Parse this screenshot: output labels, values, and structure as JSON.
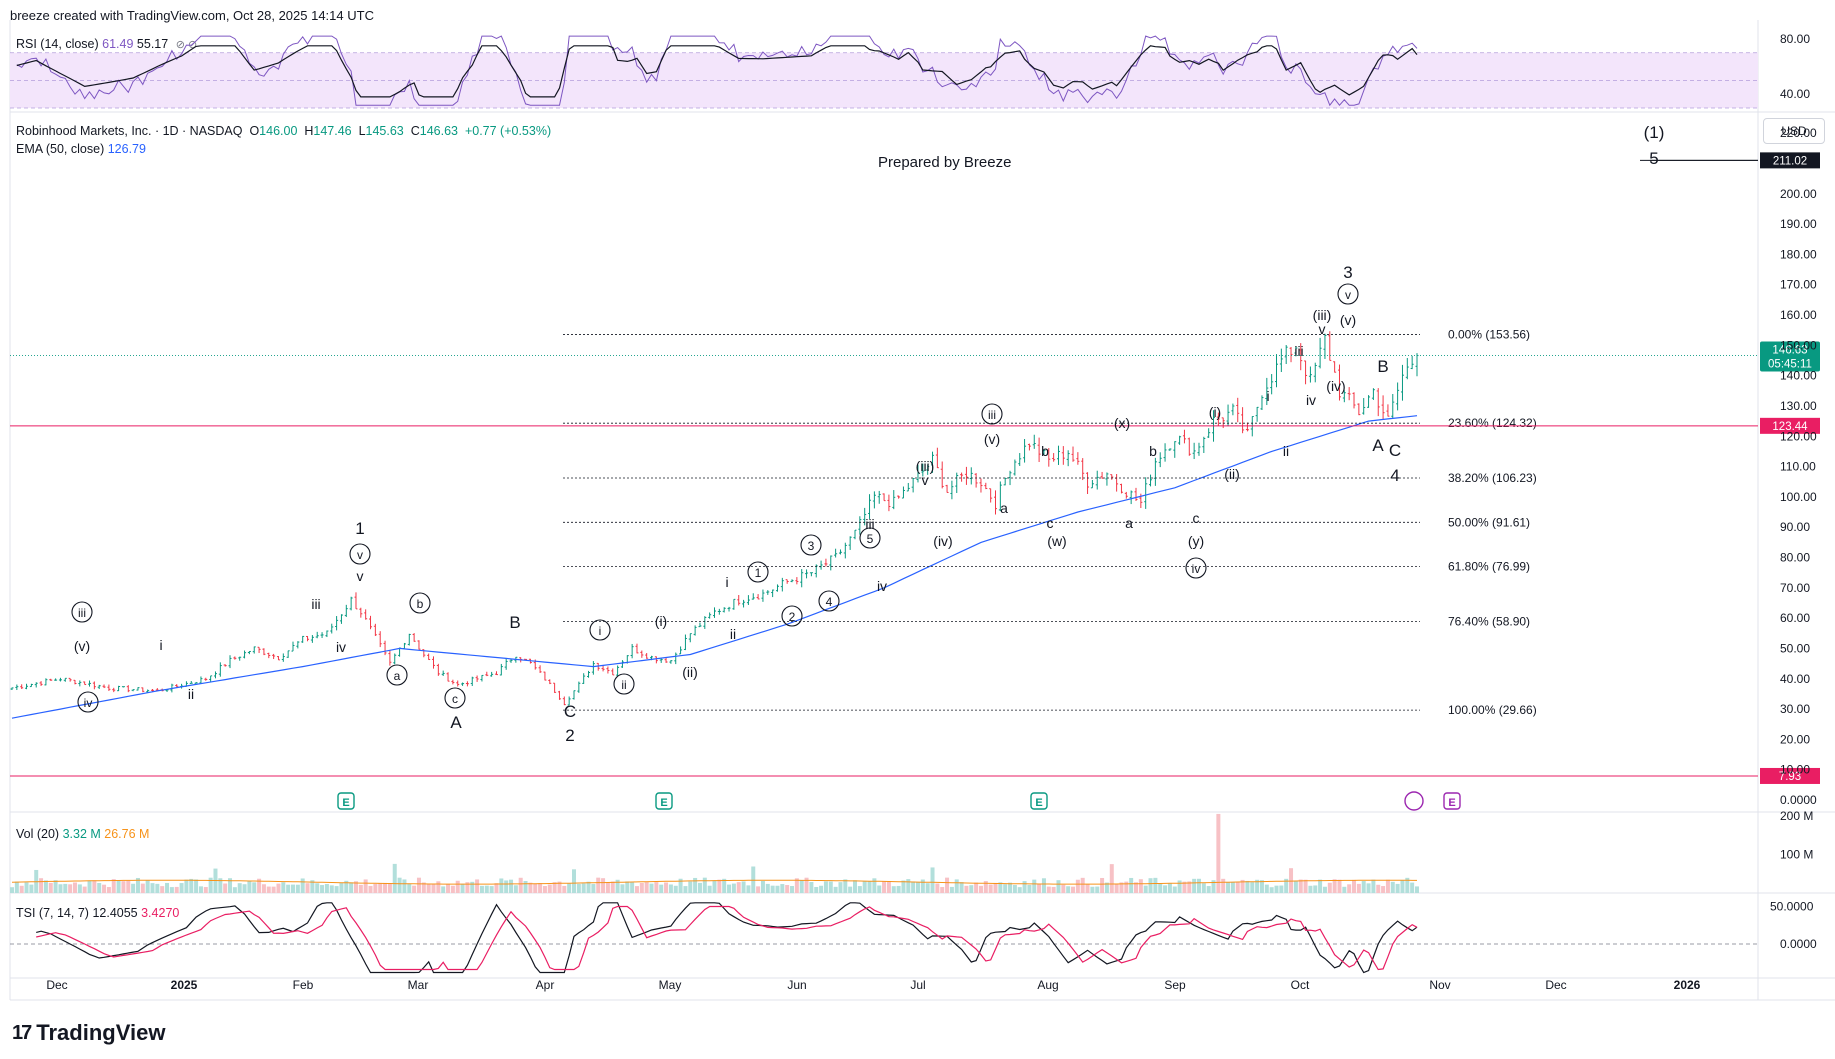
{
  "header": {
    "credit": "breeze created with TradingView.com, Oct 28, 2025 14:14 UTC"
  },
  "rsi_legend": {
    "label": "RSI (14, close)",
    "value1": "61.49",
    "value2": "55.17",
    "icons": "⊘ ⊘"
  },
  "price_legend": {
    "symbol": "Robinhood Markets, Inc. · 1D · NASDAQ",
    "open_label": "O",
    "open": "146.00",
    "high_label": "H",
    "high": "147.46",
    "low_label": "L",
    "low": "145.63",
    "close_label": "C",
    "close": "146.63",
    "change": "+0.77 (+0.53%)"
  },
  "ema_legend": {
    "label": "EMA (50, close)",
    "value": "126.79"
  },
  "vol_legend": {
    "label": "Vol (20)",
    "value1": "3.32 M",
    "value2": "26.76 M"
  },
  "tsi_legend": {
    "label": "TSI (7, 14, 7)",
    "value1": "12.4055",
    "value2": "3.4270"
  },
  "annotation": {
    "prepared": "Prepared by Breeze"
  },
  "currency": "USD",
  "footer": {
    "brand": "TradingView",
    "logo": "17"
  },
  "colors": {
    "up": "#089981",
    "down": "#f23645",
    "ema": "#2962ff",
    "rsi": "#7e57c2",
    "tsi_signal": "#e91e63",
    "hline": "#e91e63",
    "vol_up": "#b2dfdb",
    "vol_down": "#f7c1c5",
    "vol_ma": "#f7931a"
  },
  "chart_data": {
    "type": "candlestick",
    "x_ticks": [
      "Dec",
      "2025",
      "Feb",
      "Mar",
      "Apr",
      "May",
      "Jun",
      "Jul",
      "Aug",
      "Sep",
      "Oct",
      "Nov",
      "Dec",
      "2026"
    ],
    "price_ticks": [
      "220.00",
      "211.02",
      "200.00",
      "190.00",
      "180.00",
      "170.00",
      "160.00",
      "150.00",
      "146.63",
      "140.00",
      "130.00",
      "123.44",
      "120.00",
      "110.00",
      "100.00",
      "90.00",
      "80.00",
      "70.00",
      "60.00",
      "50.00",
      "40.00",
      "30.00",
      "20.00",
      "10.00",
      "7.93",
      "0.0000"
    ],
    "price_range": [
      0,
      225
    ],
    "last_price": {
      "value": 146.63,
      "label": "146.63",
      "countdown": "05:45:11"
    },
    "hlines": [
      {
        "value": 211.02,
        "label": "211.02",
        "color": "#131722"
      },
      {
        "value": 123.44,
        "label": "123.44",
        "color": "#e91e63"
      },
      {
        "value": 7.93,
        "label": "7.93",
        "color": "#e91e63"
      }
    ],
    "fib_levels": [
      {
        "value": 153.56,
        "label": "0.00% (153.56)"
      },
      {
        "value": 124.32,
        "label": "23.60% (124.32)"
      },
      {
        "value": 106.23,
        "label": "38.20% (106.23)"
      },
      {
        "value": 91.61,
        "label": "50.00% (91.61)"
      },
      {
        "value": 76.99,
        "label": "61.80% (76.99)"
      },
      {
        "value": 58.9,
        "label": "76.40% (58.90)"
      },
      {
        "value": 29.66,
        "label": "100.00% (29.66)"
      }
    ],
    "anchors": [
      [
        0,
        37
      ],
      [
        10,
        40
      ],
      [
        20,
        37
      ],
      [
        30,
        36
      ],
      [
        40,
        40
      ],
      [
        45,
        46
      ],
      [
        50,
        50
      ],
      [
        55,
        47
      ],
      [
        60,
        53
      ],
      [
        65,
        55
      ],
      [
        70,
        66
      ],
      [
        72,
        62
      ],
      [
        78,
        45
      ],
      [
        82,
        55
      ],
      [
        85,
        48
      ],
      [
        88,
        42
      ],
      [
        92,
        38
      ],
      [
        96,
        40
      ],
      [
        100,
        42
      ],
      [
        104,
        48
      ],
      [
        107,
        45
      ],
      [
        110,
        40
      ],
      [
        114,
        32
      ],
      [
        117,
        38
      ],
      [
        120,
        45
      ],
      [
        124,
        42
      ],
      [
        128,
        50
      ],
      [
        132,
        47
      ],
      [
        136,
        46
      ],
      [
        140,
        55
      ],
      [
        145,
        62
      ],
      [
        150,
        66
      ],
      [
        155,
        68
      ],
      [
        160,
        72
      ],
      [
        165,
        75
      ],
      [
        170,
        80
      ],
      [
        174,
        88
      ],
      [
        178,
        100
      ],
      [
        182,
        98
      ],
      [
        186,
        105
      ],
      [
        190,
        112
      ],
      [
        193,
        102
      ],
      [
        197,
        108
      ],
      [
        200,
        105
      ],
      [
        203,
        98
      ],
      [
        206,
        110
      ],
      [
        210,
        118
      ],
      [
        214,
        112
      ],
      [
        218,
        115
      ],
      [
        222,
        105
      ],
      [
        226,
        108
      ],
      [
        230,
        102
      ],
      [
        233,
        98
      ],
      [
        236,
        112
      ],
      [
        240,
        120
      ],
      [
        244,
        115
      ],
      [
        248,
        125
      ],
      [
        252,
        128
      ],
      [
        255,
        120
      ],
      [
        258,
        135
      ],
      [
        262,
        145
      ],
      [
        265,
        150
      ],
      [
        268,
        138
      ],
      [
        271,
        152
      ],
      [
        274,
        135
      ],
      [
        278,
        128
      ],
      [
        281,
        135
      ],
      [
        284,
        125
      ],
      [
        287,
        140
      ],
      [
        290,
        146.63
      ]
    ],
    "ema_anchors": [
      [
        0,
        27
      ],
      [
        30,
        36
      ],
      [
        60,
        44
      ],
      [
        80,
        50
      ],
      [
        100,
        47
      ],
      [
        120,
        44
      ],
      [
        140,
        48
      ],
      [
        160,
        58
      ],
      [
        180,
        70
      ],
      [
        200,
        85
      ],
      [
        220,
        95
      ],
      [
        240,
        103
      ],
      [
        260,
        115
      ],
      [
        280,
        125
      ],
      [
        290,
        126.79
      ]
    ],
    "rsi_ticks": [
      "80.00",
      "40.00"
    ],
    "rsi_range": [
      30,
      85
    ],
    "rsi_band": [
      30,
      70
    ],
    "vol_ticks": [
      "200 M",
      "100 M"
    ],
    "vol_range": [
      0,
      210
    ],
    "tsi_ticks": [
      "50.0000",
      "0.0000"
    ],
    "tsi_range": [
      -40,
      60
    ],
    "earnings_markers": [
      "E",
      "E",
      "E",
      "E"
    ],
    "wave_labels": [
      {
        "text": "1"
      },
      {
        "text": "v"
      },
      {
        "text": "v"
      },
      {
        "text": "iii"
      },
      {
        "text": "(v)"
      },
      {
        "text": "iv"
      },
      {
        "text": "i"
      },
      {
        "text": "ii"
      },
      {
        "text": "iii"
      },
      {
        "text": "iv"
      },
      {
        "text": "b"
      },
      {
        "text": "a"
      },
      {
        "text": "c"
      },
      {
        "text": "A"
      },
      {
        "text": "B"
      },
      {
        "text": "C"
      },
      {
        "text": "2"
      },
      {
        "text": "i"
      },
      {
        "text": "ii"
      },
      {
        "text": "(i)"
      },
      {
        "text": "(ii)"
      },
      {
        "text": "i"
      },
      {
        "text": "ii"
      },
      {
        "text": "1"
      },
      {
        "text": "2"
      },
      {
        "text": "3"
      },
      {
        "text": "4"
      },
      {
        "text": "5"
      },
      {
        "text": "iii"
      },
      {
        "text": "iv"
      },
      {
        "text": "(iii)"
      },
      {
        "text": "v"
      },
      {
        "text": "(iv)"
      },
      {
        "text": "iii"
      },
      {
        "text": "(v)"
      },
      {
        "text": "a"
      },
      {
        "text": "b"
      },
      {
        "text": "c"
      },
      {
        "text": "(w)"
      },
      {
        "text": "(x)"
      },
      {
        "text": "b"
      },
      {
        "text": "a"
      },
      {
        "text": "c"
      },
      {
        "text": "(y)"
      },
      {
        "text": "iv"
      },
      {
        "text": "(i)"
      },
      {
        "text": "(ii)"
      },
      {
        "text": "i"
      },
      {
        "text": "ii"
      },
      {
        "text": "iii"
      },
      {
        "text": "iv"
      },
      {
        "text": "(iii)"
      },
      {
        "text": "v"
      },
      {
        "text": "(iv)"
      },
      {
        "text": "(v)"
      },
      {
        "text": "v"
      },
      {
        "text": "3"
      },
      {
        "text": "B"
      },
      {
        "text": "A"
      },
      {
        "text": "C"
      },
      {
        "text": "4"
      },
      {
        "text": "(1)"
      },
      {
        "text": "5"
      }
    ]
  }
}
